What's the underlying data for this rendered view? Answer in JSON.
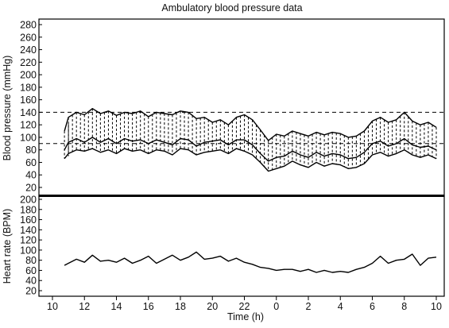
{
  "chart_data": {
    "title": "Ambulatory blood pressure data",
    "xlabel": "Time (h)",
    "x_ticks": [
      "10",
      "12",
      "14",
      "16",
      "18",
      "20",
      "22",
      "0",
      "2",
      "4",
      "6",
      "8",
      "10"
    ],
    "xlim_hours_elapsed": [
      0,
      24.2
    ],
    "panels": [
      {
        "type": "line",
        "ylabel": "Blood pressure (mmHg)",
        "ylim": [
          10,
          290
        ],
        "y_ticks": [
          20,
          40,
          60,
          80,
          100,
          120,
          140,
          160,
          180,
          200,
          220,
          240,
          260,
          280
        ],
        "reference_lines": [
          140,
          90
        ],
        "series": [
          {
            "role": "systolic",
            "x": [
              10.75,
              11.0,
              11.5,
              12.0,
              12.5,
              13.0,
              13.5,
              14.0,
              14.5,
              15.0,
              15.5,
              16.0,
              16.5,
              17.0,
              17.5,
              18.0,
              18.5,
              19.0,
              19.5,
              20.0,
              20.5,
              21.0,
              21.5,
              22.0,
              22.5,
              23.0,
              23.5,
              24.0,
              24.5,
              25.0,
              25.5,
              26.0,
              26.5,
              27.0,
              27.5,
              28.0,
              28.5,
              29.0,
              29.5,
              30.0,
              30.5,
              31.0,
              31.5,
              32.0,
              32.5,
              33.0,
              33.5,
              34.0
            ],
            "values": [
              110,
              132,
              140,
              136,
              146,
              138,
              142,
              135,
              140,
              138,
              142,
              133,
              140,
              138,
              136,
              142,
              140,
              130,
              132,
              124,
              128,
              120,
              132,
              136,
              128,
              112,
              95,
              105,
              102,
              110,
              106,
              102,
              108,
              104,
              108,
              106,
              100,
              102,
              110,
              126,
              132,
              124,
              128,
              140,
              126,
              120,
              124,
              116
            ]
          },
          {
            "role": "diastolic",
            "x": [
              10.75,
              11.0,
              11.5,
              12.0,
              12.5,
              13.0,
              13.5,
              14.0,
              14.5,
              15.0,
              15.5,
              16.0,
              16.5,
              17.0,
              17.5,
              18.0,
              18.5,
              19.0,
              19.5,
              20.0,
              20.5,
              21.0,
              21.5,
              22.0,
              22.5,
              23.0,
              23.5,
              24.0,
              24.5,
              25.0,
              25.5,
              26.0,
              26.5,
              27.0,
              27.5,
              28.0,
              28.5,
              29.0,
              29.5,
              30.0,
              30.5,
              31.0,
              31.5,
              32.0,
              32.5,
              33.0,
              33.5,
              34.0
            ],
            "values": [
              66,
              74,
              80,
              78,
              82,
              76,
              80,
              74,
              82,
              78,
              80,
              74,
              80,
              78,
              72,
              82,
              80,
              72,
              76,
              78,
              80,
              74,
              82,
              78,
              72,
              60,
              46,
              50,
              54,
              62,
              56,
              52,
              60,
              54,
              58,
              56,
              50,
              52,
              58,
              72,
              76,
              70,
              74,
              80,
              72,
              68,
              72,
              66
            ]
          },
          {
            "role": "mean",
            "x": [
              10.75,
              11.0,
              11.5,
              12.0,
              12.5,
              13.0,
              13.5,
              14.0,
              14.5,
              15.0,
              15.5,
              16.0,
              16.5,
              17.0,
              17.5,
              18.0,
              18.5,
              19.0,
              19.5,
              20.0,
              20.5,
              21.0,
              21.5,
              22.0,
              22.5,
              23.0,
              23.5,
              24.0,
              24.5,
              25.0,
              25.5,
              26.0,
              26.5,
              27.0,
              27.5,
              28.0,
              28.5,
              29.0,
              29.5,
              30.0,
              30.5,
              31.0,
              31.5,
              32.0,
              32.5,
              33.0,
              33.5,
              34.0
            ],
            "values": [
              80,
              92,
              98,
              92,
              100,
              92,
              98,
              90,
              98,
              94,
              96,
              90,
              96,
              92,
              88,
              98,
              96,
              86,
              92,
              94,
              96,
              88,
              96,
              96,
              88,
              74,
              62,
              68,
              70,
              78,
              72,
              68,
              76,
              70,
              74,
              72,
              66,
              68,
              76,
              90,
              94,
              86,
              90,
              98,
              88,
              84,
              86,
              80
            ]
          }
        ]
      },
      {
        "type": "line",
        "ylabel": "Heart rate (BPM)",
        "ylim": [
          10,
          205
        ],
        "y_ticks": [
          20,
          40,
          60,
          80,
          100,
          120,
          140,
          160,
          180,
          200
        ],
        "series": [
          {
            "role": "heart rate",
            "x": [
              10.75,
              11.0,
              11.5,
              12.0,
              12.5,
              13.0,
              13.5,
              14.0,
              14.5,
              15.0,
              15.5,
              16.0,
              16.5,
              17.0,
              17.5,
              18.0,
              18.5,
              19.0,
              19.5,
              20.0,
              20.5,
              21.0,
              21.5,
              22.0,
              22.5,
              23.0,
              23.5,
              24.0,
              24.5,
              25.0,
              25.5,
              26.0,
              26.5,
              27.0,
              27.5,
              28.0,
              28.5,
              29.0,
              29.5,
              30.0,
              30.5,
              31.0,
              31.5,
              32.0,
              32.5,
              33.0,
              33.5,
              34.0
            ],
            "values": [
              70,
              74,
              82,
              76,
              90,
              78,
              80,
              76,
              84,
              74,
              80,
              88,
              74,
              82,
              90,
              80,
              86,
              96,
              82,
              84,
              88,
              78,
              84,
              76,
              72,
              66,
              64,
              60,
              62,
              62,
              58,
              62,
              56,
              60,
              56,
              58,
              56,
              62,
              66,
              74,
              88,
              74,
              80,
              82,
              92,
              70,
              84,
              86
            ]
          }
        ]
      }
    ]
  }
}
